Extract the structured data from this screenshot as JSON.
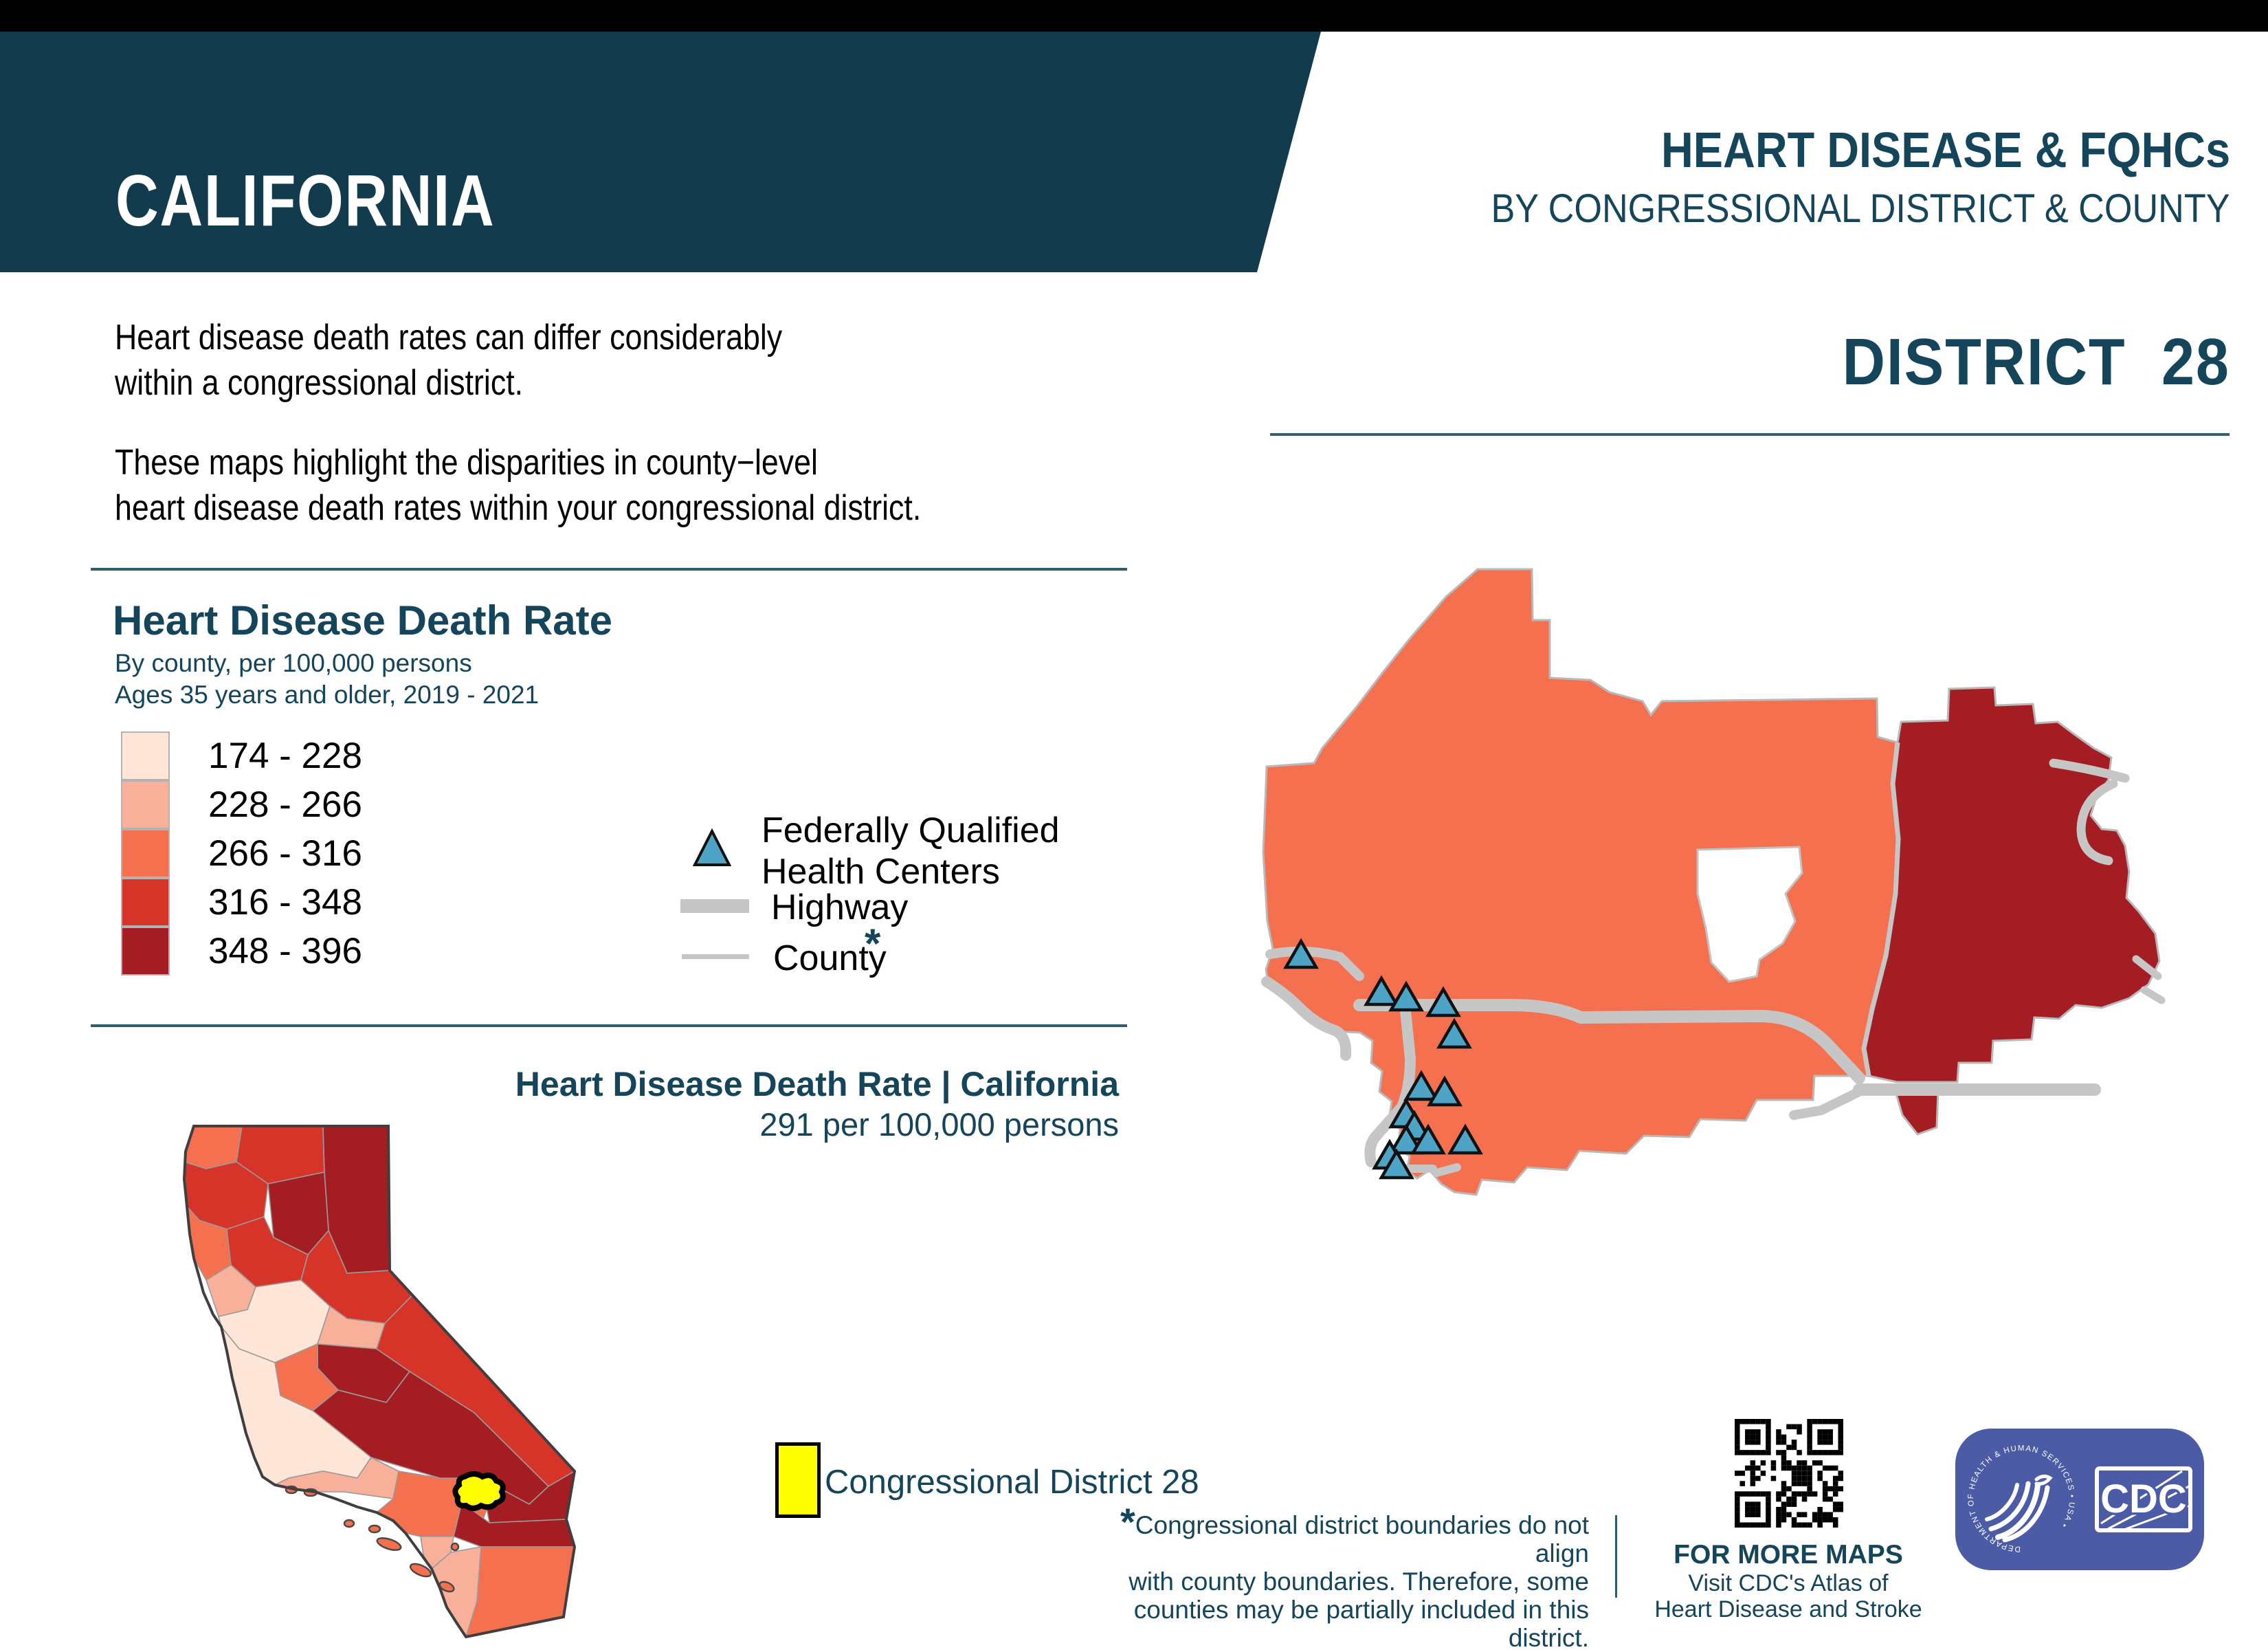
{
  "colors": {
    "teal_dark": "#123C4E",
    "teal_text": "#14455A",
    "class1": "#FDE5D8",
    "class2": "#F8B09A",
    "class3": "#F4704E",
    "class4": "#D63329",
    "class5": "#A41D23",
    "fqhc": "#4DA4C6",
    "road": "#C6C6C6",
    "yellow": "#FFFF00",
    "logo_blue": "#4C5BA6"
  },
  "banner": {
    "state": "CALIFORNIA"
  },
  "header": {
    "title": "HEART DISEASE & FQHCs",
    "subtitle": "BY CONGRESSIONAL DISTRICT & COUNTY",
    "district": "DISTRICT  28"
  },
  "intro": {
    "p1_line1": "Heart disease death rates can differ considerably",
    "p1_line2": "within a congressional district.",
    "p2_line1": "These maps highlight the disparities in county−level",
    "p2_line2": "heart disease death rates within your congressional district."
  },
  "legend": {
    "title": "Heart Disease Death Rate",
    "subtitle1": "By county, per 100,000 persons",
    "subtitle2": "Ages 35 years and older, 2019 - 2021",
    "classes": [
      {
        "range": "174 - 228",
        "color": "#FDE5D8"
      },
      {
        "range": "228 - 266",
        "color": "#F8B09A"
      },
      {
        "range": "266 - 316",
        "color": "#F4704E"
      },
      {
        "range": "316 - 348",
        "color": "#D63329"
      },
      {
        "range": "348 - 396",
        "color": "#A41D23"
      }
    ],
    "fqhc_line1": "Federally Qualified",
    "fqhc_line2": "Health Centers",
    "highway": "Highway",
    "county": "County",
    "county_asterisk": "*"
  },
  "state_summary": {
    "title": "Heart Disease Death Rate | California",
    "value": "291 per 100,000 persons"
  },
  "district_legend": {
    "label": "Congressional District 28"
  },
  "footnote": {
    "asterisk": "*",
    "line1": "Congressional district boundaries do not align",
    "line2": "with county boundaries. Therefore, some",
    "line3": "counties may be partially included in this district."
  },
  "more_maps": {
    "title": "FOR MORE MAPS",
    "line1": "Visit CDC's Atlas of",
    "line2": "Heart Disease and Stroke"
  },
  "cdc_logo": {
    "acronym": "CDC",
    "ring_text": "DEPARTMENT OF HEALTH & HUMAN SERVICES • USA •"
  },
  "district_map": {
    "left_region_class": "266 - 316",
    "right_region_class": "348 - 396",
    "fqhc_points": [
      [
        1893,
        1390
      ],
      [
        2010,
        1444
      ],
      [
        2046,
        1452
      ],
      [
        2100,
        1460
      ],
      [
        2116,
        1506
      ],
      [
        2068,
        1582
      ],
      [
        2102,
        1590
      ],
      [
        2046,
        1622
      ],
      [
        2058,
        1640
      ],
      [
        2046,
        1660
      ],
      [
        2078,
        1660
      ],
      [
        2132,
        1660
      ],
      [
        2022,
        1682
      ],
      [
        2032,
        1696
      ]
    ]
  }
}
